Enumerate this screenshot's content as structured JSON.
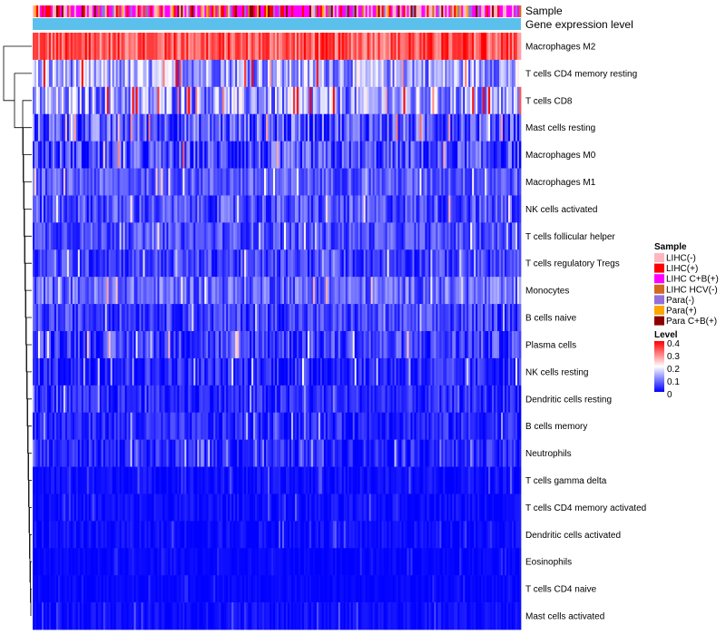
{
  "chart_data": {
    "type": "heatmap",
    "annotation_tracks": [
      "Sample",
      "Gene expression level"
    ],
    "rows": [
      {
        "label": "Macrophages M2",
        "mean": 0.33,
        "spread": 0.07
      },
      {
        "label": "T cells CD4 memory resting",
        "mean": 0.13,
        "spread": 0.09
      },
      {
        "label": "T cells CD8",
        "mean": 0.12,
        "spread": 0.1
      },
      {
        "label": "Mast cells resting",
        "mean": 0.07,
        "spread": 0.08
      },
      {
        "label": "Macrophages M0",
        "mean": 0.05,
        "spread": 0.08
      },
      {
        "label": "Macrophages M1",
        "mean": 0.07,
        "spread": 0.05
      },
      {
        "label": "NK cells activated",
        "mean": 0.06,
        "spread": 0.06
      },
      {
        "label": "T cells follicular helper",
        "mean": 0.06,
        "spread": 0.05
      },
      {
        "label": "T cells regulatory  Tregs",
        "mean": 0.05,
        "spread": 0.05
      },
      {
        "label": "Monocytes",
        "mean": 0.08,
        "spread": 0.06
      },
      {
        "label": "B cells naive",
        "mean": 0.05,
        "spread": 0.05
      },
      {
        "label": "Plasma cells",
        "mean": 0.05,
        "spread": 0.06
      },
      {
        "label": "NK cells resting",
        "mean": 0.03,
        "spread": 0.05
      },
      {
        "label": "Dendritic cells resting",
        "mean": 0.03,
        "spread": 0.04
      },
      {
        "label": "B cells memory",
        "mean": 0.03,
        "spread": 0.04
      },
      {
        "label": "Neutrophils",
        "mean": 0.03,
        "spread": 0.04
      },
      {
        "label": "T cells gamma delta",
        "mean": 0.01,
        "spread": 0.02
      },
      {
        "label": "T cells CD4 memory activated",
        "mean": 0.01,
        "spread": 0.02
      },
      {
        "label": "Dendritic cells activated",
        "mean": 0.01,
        "spread": 0.02
      },
      {
        "label": "Eosinophils",
        "mean": 0.005,
        "spread": 0.01
      },
      {
        "label": "T cells CD4 naive",
        "mean": 0.005,
        "spread": 0.01
      },
      {
        "label": "Mast cells activated",
        "mean": 0.01,
        "spread": 0.02
      }
    ],
    "n_samples": 270,
    "color_scale": {
      "min": 0,
      "max": 0.4,
      "low": "#0000ff",
      "mid": "#ffffff",
      "high": "#ff0000"
    },
    "legend": {
      "sample_title": "Sample",
      "sample_groups": [
        {
          "label": "LIHC(-)",
          "color": "#ffb6c1"
        },
        {
          "label": "LIHC(+)",
          "color": "#ff0000"
        },
        {
          "label": "LIHC C+B(+)",
          "color": "#ff00ff"
        },
        {
          "label": "LIHC HCV(-)",
          "color": "#d2691e"
        },
        {
          "label": "Para(-)",
          "color": "#9370db"
        },
        {
          "label": "Para(+)",
          "color": "#ffa500"
        },
        {
          "label": "Para C+B(+)",
          "color": "#8b0000"
        }
      ],
      "level_title": "Level",
      "level_ticks": [
        "0.4",
        "0.3",
        "0.2",
        "0.1",
        "0"
      ]
    },
    "gene_expression_color": "#5bc0eb"
  }
}
